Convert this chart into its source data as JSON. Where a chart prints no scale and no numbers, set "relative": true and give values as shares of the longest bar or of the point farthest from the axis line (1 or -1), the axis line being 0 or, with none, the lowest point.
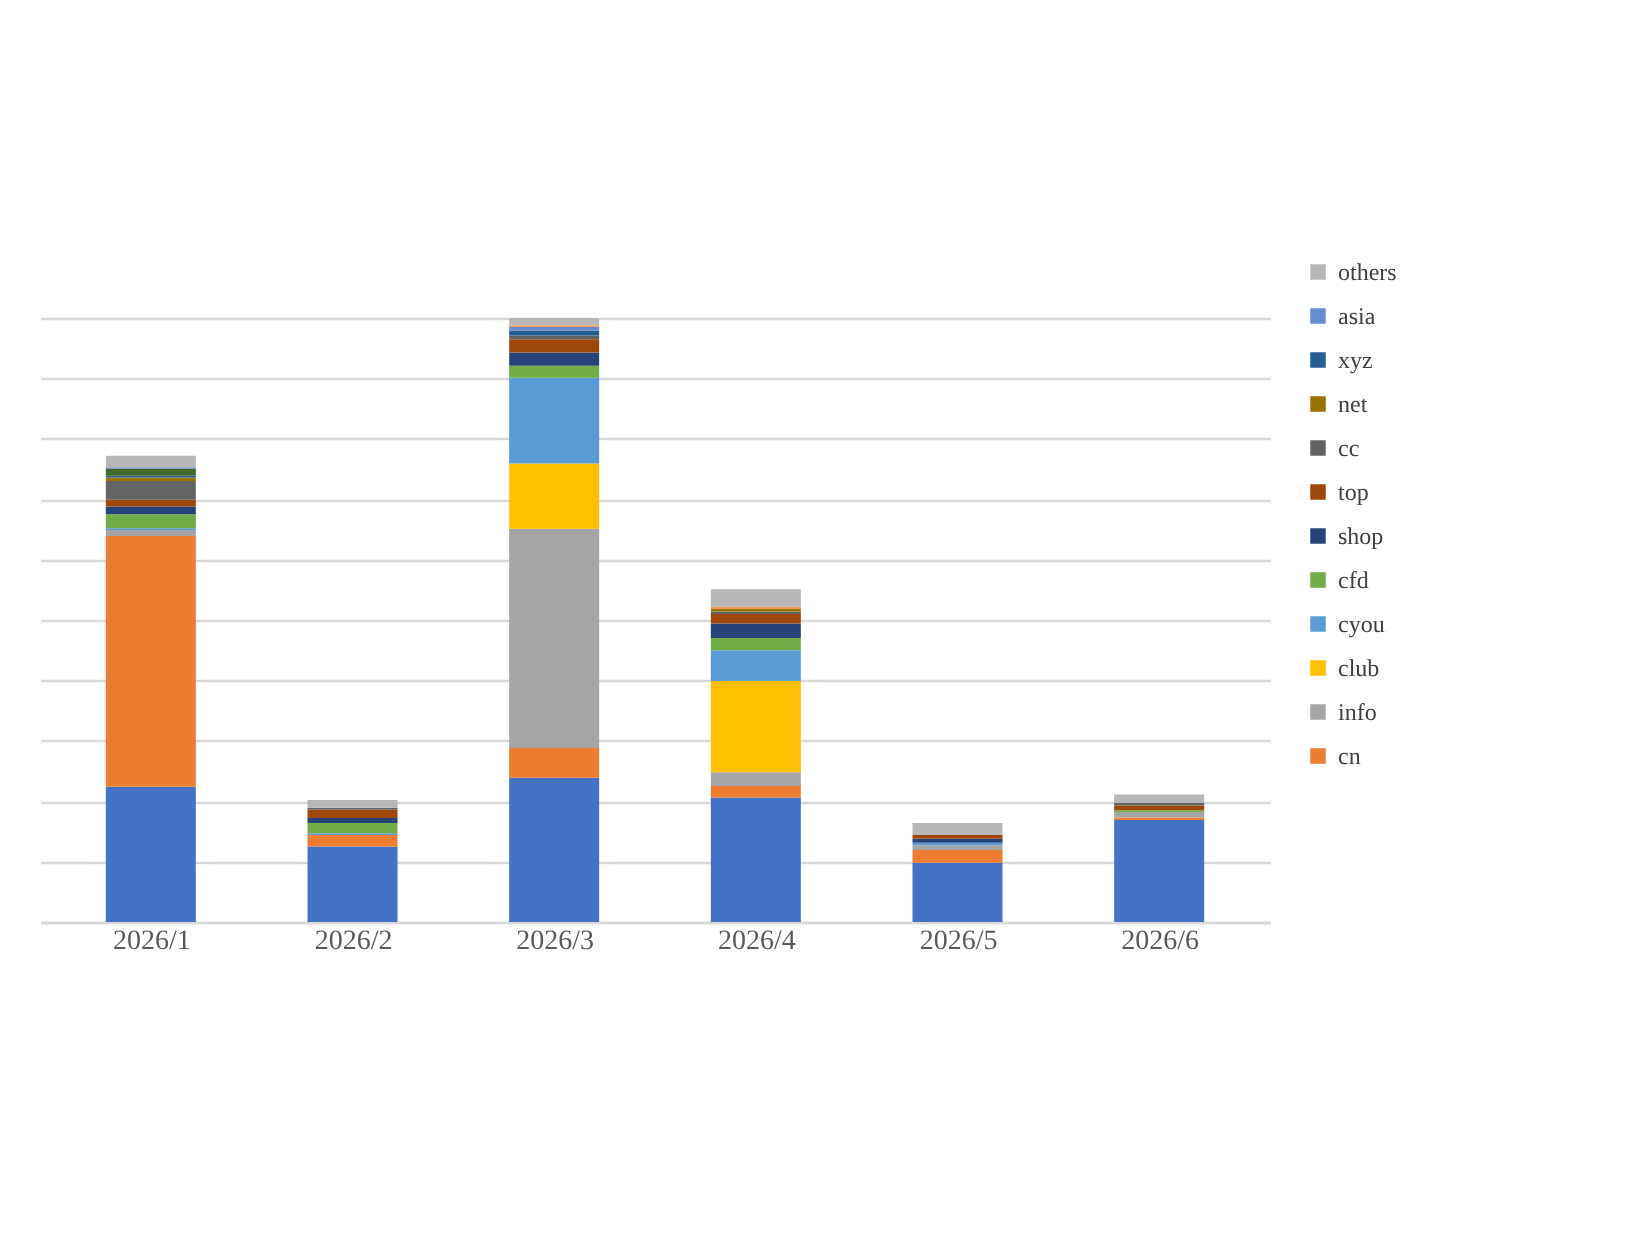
{
  "chart_data": {
    "type": "bar",
    "stacked": true,
    "relative": true,
    "grid": "y",
    "legend": "right",
    "categories": [
      "2026/1",
      "2026/2",
      "2026/3",
      "2026/4",
      "2026/5",
      "2026/6"
    ],
    "series": [
      {
        "color": "#4472c4",
        "values": [
          0.224,
          0.125,
          0.239,
          0.206,
          0.098,
          0.169
        ]
      },
      {
        "name": "cn",
        "color": "#ed7d31",
        "values": [
          0.415,
          0.019,
          0.049,
          0.019,
          0.021,
          0.004
        ]
      },
      {
        "name": "info",
        "color": "#a5a5a5",
        "values": [
          0.01,
          0,
          0.363,
          0.023,
          0.008,
          0.009
        ]
      },
      {
        "name": "club",
        "color": "#ffc000",
        "values": [
          0,
          0,
          0.108,
          0.151,
          0,
          0
        ]
      },
      {
        "name": "cyou",
        "color": "#5b9bd5",
        "values": [
          0.003,
          0.003,
          0.142,
          0.051,
          0.004,
          0
        ]
      },
      {
        "name": "cfd",
        "color": "#70ad47",
        "values": [
          0.023,
          0.017,
          0.02,
          0.02,
          0,
          0.003
        ]
      },
      {
        "name": "shop",
        "color": "#264478",
        "values": [
          0.013,
          0.008,
          0.022,
          0.024,
          0.007,
          0
        ]
      },
      {
        "name": "top",
        "color": "#9e480e",
        "values": [
          0.011,
          0.014,
          0.022,
          0.016,
          0.006,
          0.008
        ]
      },
      {
        "name": "cc",
        "color": "#636363",
        "values": [
          0.031,
          0.003,
          0.006,
          0.004,
          0,
          0.004
        ]
      },
      {
        "name": "net",
        "color": "#997300",
        "values": [
          0.006,
          0,
          0,
          0.004,
          0,
          0
        ]
      },
      {
        "name": "xyz",
        "color": "#255e91",
        "values": [
          0.003,
          0,
          0.008,
          0,
          0,
          0
        ]
      },
      {
        "color": "#43682b",
        "values": [
          0.012,
          0,
          0,
          0,
          0,
          0
        ]
      },
      {
        "name": "asia",
        "color": "#698ed0",
        "values": [
          0.002,
          0,
          0.006,
          0,
          0,
          0
        ]
      },
      {
        "color": "#f1975a",
        "values": [
          0,
          0,
          0.003,
          0.004,
          0,
          0
        ]
      },
      {
        "name": "others",
        "color": "#b7b7b7",
        "values": [
          0.019,
          0.013,
          0.012,
          0.029,
          0.02,
          0.014
        ]
      }
    ]
  }
}
